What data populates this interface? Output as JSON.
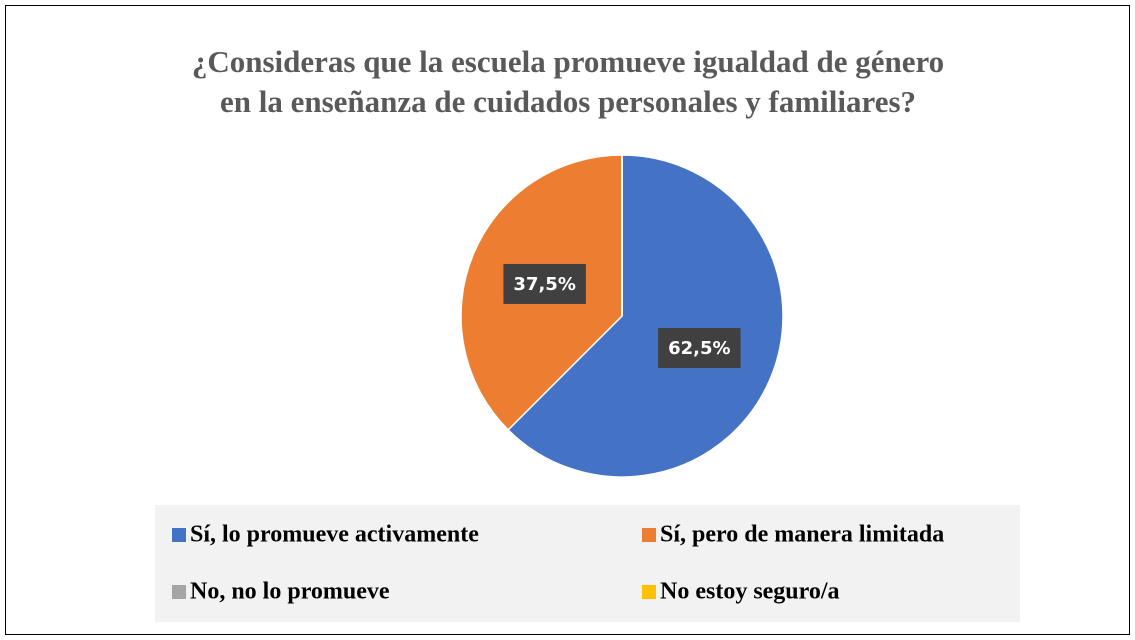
{
  "chart_data": {
    "type": "pie",
    "title": [
      "¿Consideras que la escuela promueve igualdad de género",
      "en la enseñanza de cuidados personales y familiares?"
    ],
    "categories": [
      "Sí, lo promueve activamente",
      "Sí, pero de manera limitada",
      "No, no lo promueve",
      "No estoy seguro/a"
    ],
    "values": [
      62.5,
      37.5,
      0,
      0
    ],
    "value_labels": [
      "62,5%",
      "37,5%",
      null,
      null
    ],
    "colors": [
      "#4472c4",
      "#ed7d31",
      "#a5a5a5",
      "#ffc000"
    ],
    "legend": "bottom"
  }
}
